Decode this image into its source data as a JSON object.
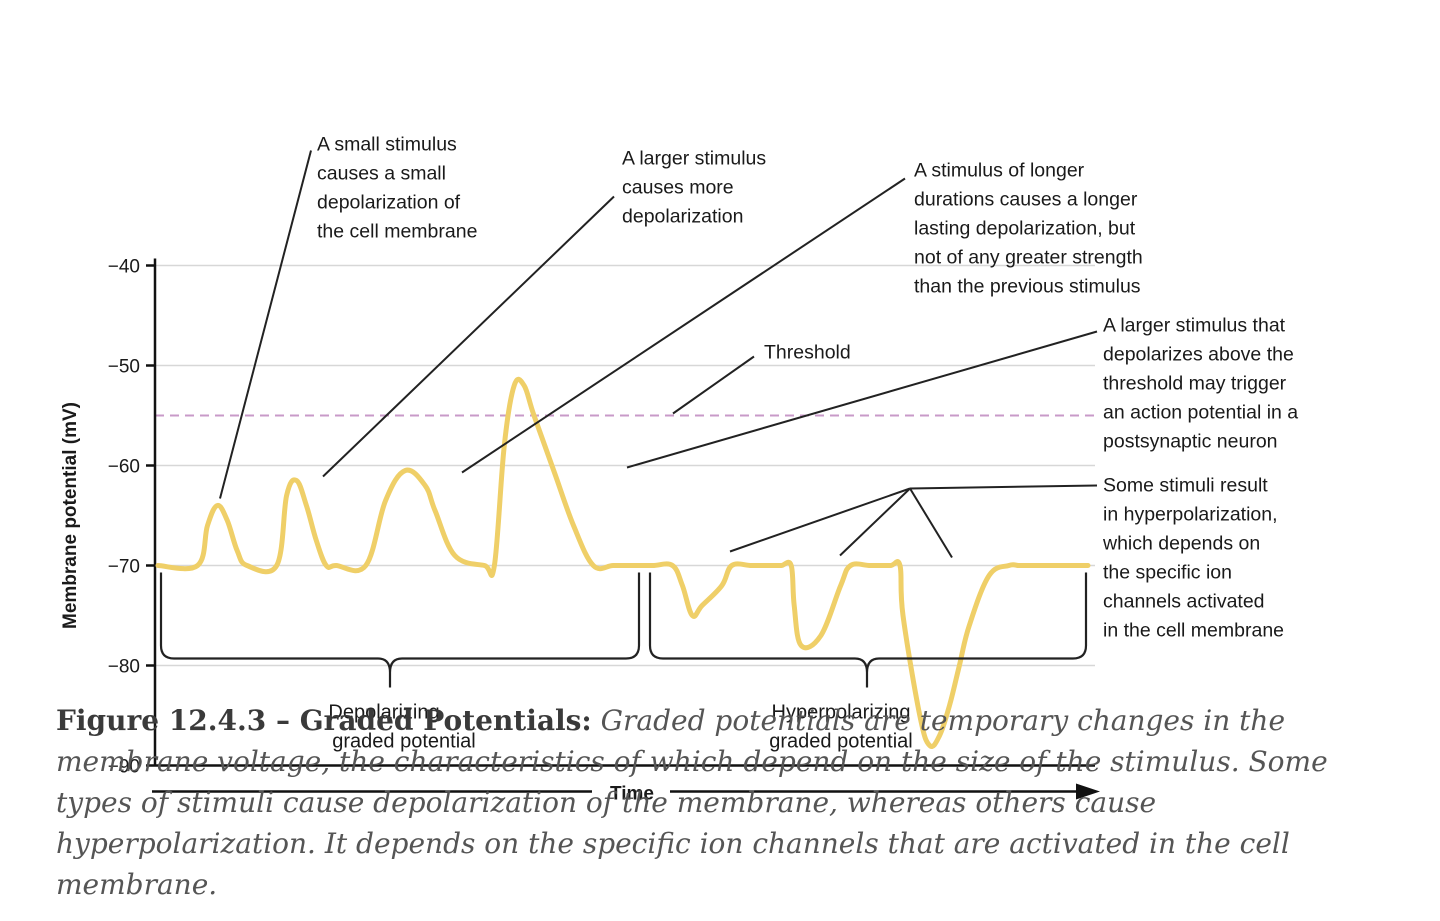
{
  "chart_data": {
    "type": "line",
    "ylabel": "Membrane potential (mV)",
    "xlabel": "Time",
    "y_ticks": [
      "−40",
      "−50",
      "−60",
      "−70",
      "−80",
      "−90"
    ],
    "ylim": [
      -90,
      -40
    ],
    "grid": true,
    "line_color": "#efcf68",
    "threshold": {
      "label": "Threshold",
      "value": -55,
      "color": "#c89ac8"
    },
    "series": [
      {
        "x": [
          0,
          4,
          5,
          6,
          7,
          8,
          9,
          12,
          13,
          14,
          15,
          16,
          17,
          18,
          21,
          23,
          25,
          27,
          28,
          30,
          33,
          34,
          35,
          36,
          37,
          38,
          40,
          42,
          44,
          46,
          48,
          50,
          52,
          53,
          54,
          55,
          57,
          58,
          60,
          62,
          63,
          64,
          64.3,
          65,
          67,
          69,
          70,
          72,
          74,
          75,
          75.3,
          77,
          78,
          79,
          80,
          81,
          82,
          84,
          86,
          87,
          88,
          88.3,
          90,
          93,
          94
        ],
        "y": [
          -70,
          -70,
          -66,
          -64,
          -65.5,
          -68.5,
          -70,
          -70,
          -63,
          -61.5,
          -64,
          -67.5,
          -70,
          -70,
          -70,
          -63.5,
          -60.5,
          -62,
          -64.5,
          -69,
          -70,
          -70,
          -58,
          -52,
          -52,
          -55,
          -60.5,
          -66,
          -70,
          -70,
          -70,
          -70,
          -70,
          -72,
          -75,
          -74,
          -72,
          -70,
          -70,
          -70,
          -70,
          -70,
          -74,
          -78,
          -77,
          -72,
          -70,
          -70,
          -70,
          -70,
          -75,
          -85,
          -88,
          -87,
          -84,
          -80,
          -76,
          -71,
          -70,
          -70,
          -70,
          -70,
          -70,
          -70,
          -70
        ]
      }
    ]
  },
  "annotations": {
    "small": [
      "A small stimulus",
      "causes a small",
      "depolarization of",
      "the cell membrane"
    ],
    "larger": [
      "A larger stimulus",
      "causes more",
      "depolarization"
    ],
    "longer": [
      "A stimulus of longer",
      "durations causes a longer",
      "lasting depolarization, but",
      "not of any greater strength",
      "than the previous stimulus"
    ],
    "threshold_trigger": [
      "A larger stimulus that",
      "depolarizes above the",
      "threshold may trigger",
      "an action potential in a",
      "postsynaptic neuron"
    ],
    "hyper": [
      "Some stimuli result",
      "in hyperpolarization,",
      "which depends on",
      "the specific ion",
      "channels activated",
      "in the cell membrane"
    ]
  },
  "groups": {
    "depolarizing": [
      "Depolarizing",
      "graded potential"
    ],
    "hyperpolarizing": [
      "Hyperpolarizing",
      "graded potential"
    ]
  },
  "caption": {
    "label": "Figure 12.4.3 – Graded Potentials:",
    "text": "Graded potentials are temporary changes in the membrane voltage, the characteristics of which depend on the size of the stimulus. Some types of stimuli cause depolarization of the membrane, whereas others cause hyperpolarization. It depends on the specific ion channels that are activated in the cell membrane."
  }
}
